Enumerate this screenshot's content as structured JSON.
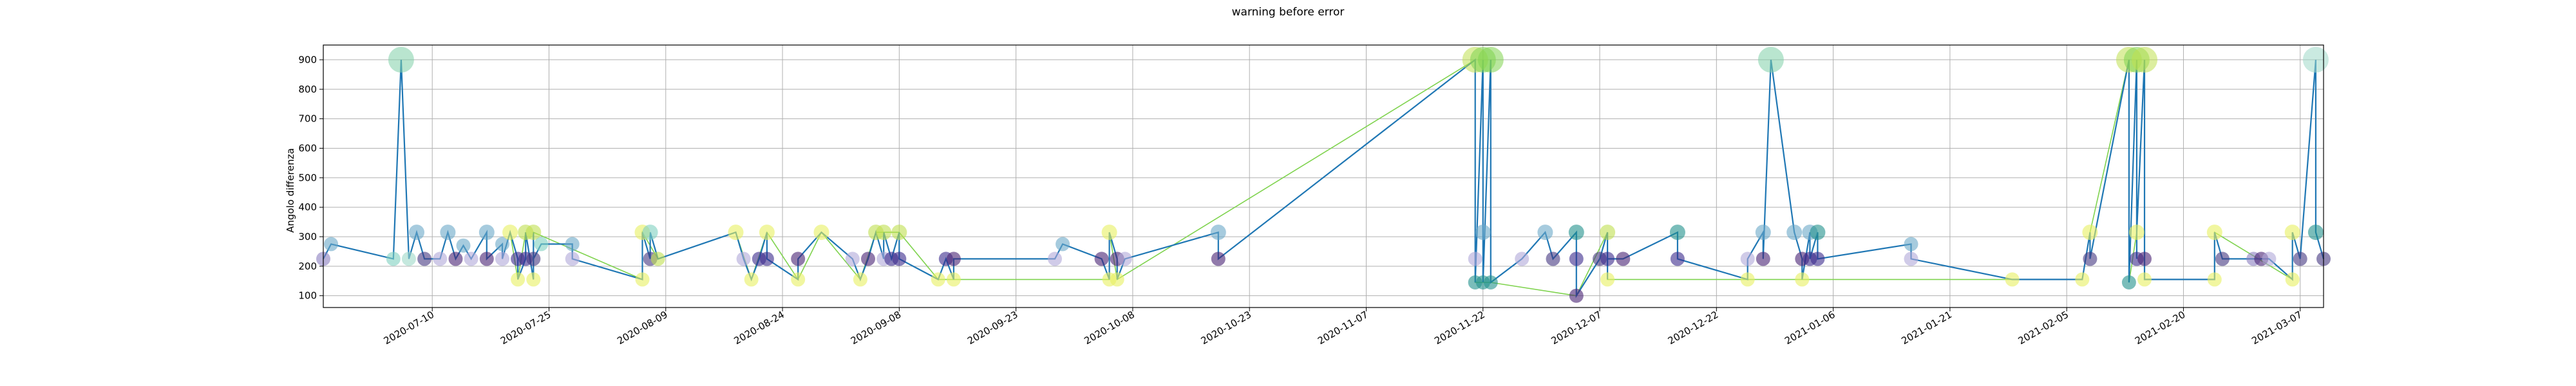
{
  "chart_data": {
    "type": "scatter",
    "title": "warning before error",
    "xlabel": "",
    "ylabel": "Angolo differenza",
    "x_axis": "date",
    "xlim": [
      "2020-06-26",
      "2021-03-10"
    ],
    "ylim": [
      60,
      950
    ],
    "grid": true,
    "x_ticks": [
      "2020-07-10",
      "2020-07-25",
      "2020-08-09",
      "2020-08-24",
      "2020-09-08",
      "2020-09-23",
      "2020-10-08",
      "2020-10-23",
      "2020-11-07",
      "2020-11-22",
      "2020-12-07",
      "2020-12-22",
      "2021-01-06",
      "2021-01-21",
      "2021-02-05",
      "2021-02-20",
      "2021-03-07"
    ],
    "y_ticks": [
      100,
      200,
      300,
      400,
      500,
      600,
      700,
      800,
      900
    ],
    "line_color": "#1f77b4",
    "secondary_line_color": "#7fd34e",
    "series": [
      {
        "marker_style": "translucent circles sized and colored by value",
        "points": [
          {
            "x": "2020-06-26",
            "y": 225,
            "c": "#8a7fc0"
          },
          {
            "x": "2020-06-27",
            "y": 275,
            "c": "#6aa8c8"
          },
          {
            "x": "2020-07-05",
            "y": 225,
            "c": "#7fd0c0"
          },
          {
            "x": "2020-07-06",
            "y": 900,
            "c": "#7fd0a8",
            "s": "large"
          },
          {
            "x": "2020-07-07",
            "y": 225,
            "c": "#9fd8c8"
          },
          {
            "x": "2020-07-08",
            "y": 315,
            "c": "#6aa8c8"
          },
          {
            "x": "2020-07-09",
            "y": 225,
            "c": "#453781"
          },
          {
            "x": "2020-07-11",
            "y": 225,
            "c": "#b0a8d8"
          },
          {
            "x": "2020-07-12",
            "y": 315,
            "c": "#6aa8c8"
          },
          {
            "x": "2020-07-13",
            "y": 225,
            "c": "#482173"
          },
          {
            "x": "2020-07-14",
            "y": 270,
            "c": "#6aa8c8"
          },
          {
            "x": "2020-07-15",
            "y": 225,
            "c": "#b0a8d8"
          },
          {
            "x": "2020-07-17",
            "y": 315,
            "c": "#6aa8c8"
          },
          {
            "x": "2020-07-17",
            "y": 225,
            "c": "#482173"
          },
          {
            "x": "2020-07-19",
            "y": 275,
            "c": "#6aa8c8"
          },
          {
            "x": "2020-07-19",
            "y": 225,
            "c": "#b0a8d8"
          },
          {
            "x": "2020-07-20",
            "y": 315,
            "c": "#e8f060"
          },
          {
            "x": "2020-07-21",
            "y": 225,
            "c": "#3b2a8c"
          },
          {
            "x": "2020-07-21",
            "y": 155,
            "c": "#e8f060"
          },
          {
            "x": "2020-07-22",
            "y": 225,
            "c": "#3b2a8c"
          },
          {
            "x": "2020-07-22",
            "y": 315,
            "c": "#c0e050"
          },
          {
            "x": "2020-07-23",
            "y": 155,
            "c": "#e8f060"
          },
          {
            "x": "2020-07-23",
            "y": 315,
            "c": "#c0e050"
          },
          {
            "x": "2020-07-23",
            "y": 225,
            "c": "#453781"
          },
          {
            "x": "2020-07-24",
            "y": 275,
            "c": "#7fd0c0"
          },
          {
            "x": "2020-07-28",
            "y": 275,
            "c": "#6aa8c8"
          },
          {
            "x": "2020-07-28",
            "y": 225,
            "c": "#b0a8d8"
          },
          {
            "x": "2020-08-06",
            "y": 155,
            "c": "#e8f060"
          },
          {
            "x": "2020-08-06",
            "y": 315,
            "c": "#e8f060"
          },
          {
            "x": "2020-08-07",
            "y": 225,
            "c": "#453781"
          },
          {
            "x": "2020-08-07",
            "y": 315,
            "c": "#7fd0c0"
          },
          {
            "x": "2020-08-08",
            "y": 225,
            "c": "#c0e050"
          },
          {
            "x": "2020-08-18",
            "y": 315,
            "c": "#e8f060"
          },
          {
            "x": "2020-08-19",
            "y": 225,
            "c": "#b0a8d8"
          },
          {
            "x": "2020-08-20",
            "y": 155,
            "c": "#e8f060"
          },
          {
            "x": "2020-08-21",
            "y": 225,
            "c": "#3b2a8c"
          },
          {
            "x": "2020-08-22",
            "y": 315,
            "c": "#e8f060"
          },
          {
            "x": "2020-08-22",
            "y": 225,
            "c": "#3b2a8c"
          },
          {
            "x": "2020-08-26",
            "y": 155,
            "c": "#e8f060"
          },
          {
            "x": "2020-08-26",
            "y": 225,
            "c": "#482173"
          },
          {
            "x": "2020-08-29",
            "y": 315,
            "c": "#e8f060"
          },
          {
            "x": "2020-09-02",
            "y": 225,
            "c": "#b0a8d8"
          },
          {
            "x": "2020-09-03",
            "y": 155,
            "c": "#e8f060"
          },
          {
            "x": "2020-09-04",
            "y": 225,
            "c": "#482173"
          },
          {
            "x": "2020-09-05",
            "y": 315,
            "c": "#c0e050"
          },
          {
            "x": "2020-09-06",
            "y": 225,
            "c": "#b0a8d8"
          },
          {
            "x": "2020-09-06",
            "y": 315,
            "c": "#c0e050"
          },
          {
            "x": "2020-09-07",
            "y": 225,
            "c": "#3b2a8c"
          },
          {
            "x": "2020-09-08",
            "y": 315,
            "c": "#c0e050"
          },
          {
            "x": "2020-09-08",
            "y": 225,
            "c": "#3b2a8c"
          },
          {
            "x": "2020-09-13",
            "y": 155,
            "c": "#e8f060"
          },
          {
            "x": "2020-09-14",
            "y": 225,
            "c": "#3b2a8c"
          },
          {
            "x": "2020-09-15",
            "y": 155,
            "c": "#e8f060"
          },
          {
            "x": "2020-09-15",
            "y": 225,
            "c": "#482173"
          },
          {
            "x": "2020-09-28",
            "y": 225,
            "c": "#b0a8d8"
          },
          {
            "x": "2020-09-29",
            "y": 275,
            "c": "#6aa8c8"
          },
          {
            "x": "2020-10-04",
            "y": 225,
            "c": "#482173"
          },
          {
            "x": "2020-10-05",
            "y": 155,
            "c": "#e8f060"
          },
          {
            "x": "2020-10-05",
            "y": 315,
            "c": "#e8f060"
          },
          {
            "x": "2020-10-06",
            "y": 225,
            "c": "#482173"
          },
          {
            "x": "2020-10-06",
            "y": 155,
            "c": "#e8f060"
          },
          {
            "x": "2020-10-07",
            "y": 225,
            "c": "#b0a8d8"
          },
          {
            "x": "2020-10-19",
            "y": 315,
            "c": "#6aa8c8"
          },
          {
            "x": "2020-10-19",
            "y": 225,
            "c": "#482173"
          },
          {
            "x": "2020-11-21",
            "y": 900,
            "c": "#c0e050",
            "s": "large"
          },
          {
            "x": "2020-11-21",
            "y": 225,
            "c": "#b0a8d8"
          },
          {
            "x": "2020-11-21",
            "y": 145,
            "c": "#21918c"
          },
          {
            "x": "2020-11-22",
            "y": 900,
            "c": "#7fd34e",
            "s": "large"
          },
          {
            "x": "2020-11-22",
            "y": 315,
            "c": "#6aa8c8"
          },
          {
            "x": "2020-11-22",
            "y": 145,
            "c": "#21918c"
          },
          {
            "x": "2020-11-23",
            "y": 900,
            "c": "#7fd34e",
            "s": "large"
          },
          {
            "x": "2020-11-23",
            "y": 145,
            "c": "#21918c"
          },
          {
            "x": "2020-11-27",
            "y": 225,
            "c": "#b0a8d8"
          },
          {
            "x": "2020-11-30",
            "y": 315,
            "c": "#6aa8c8"
          },
          {
            "x": "2020-12-01",
            "y": 225,
            "c": "#453781"
          },
          {
            "x": "2020-12-04",
            "y": 315,
            "c": "#21918c"
          },
          {
            "x": "2020-12-04",
            "y": 225,
            "c": "#3b2a8c"
          },
          {
            "x": "2020-12-04",
            "y": 100,
            "c": "#482173"
          },
          {
            "x": "2020-12-07",
            "y": 225,
            "c": "#453781"
          },
          {
            "x": "2020-12-08",
            "y": 315,
            "c": "#c0e050"
          },
          {
            "x": "2020-12-08",
            "y": 155,
            "c": "#e8f060"
          },
          {
            "x": "2020-12-08",
            "y": 225,
            "c": "#3b2a8c"
          },
          {
            "x": "2020-12-10",
            "y": 225,
            "c": "#482173"
          },
          {
            "x": "2020-12-17",
            "y": 315,
            "c": "#21918c"
          },
          {
            "x": "2020-12-17",
            "y": 225,
            "c": "#3b2a8c"
          },
          {
            "x": "2020-12-26",
            "y": 155,
            "c": "#e8f060"
          },
          {
            "x": "2020-12-26",
            "y": 225,
            "c": "#b0a8d8"
          },
          {
            "x": "2020-12-28",
            "y": 315,
            "c": "#6aa8c8"
          },
          {
            "x": "2020-12-28",
            "y": 225,
            "c": "#482173"
          },
          {
            "x": "2020-12-29",
            "y": 900,
            "c": "#7fd0a8",
            "s": "large"
          },
          {
            "x": "2021-01-01",
            "y": 315,
            "c": "#6aa8c8"
          },
          {
            "x": "2021-01-02",
            "y": 225,
            "c": "#482173"
          },
          {
            "x": "2021-01-02",
            "y": 155,
            "c": "#e8f060"
          },
          {
            "x": "2021-01-03",
            "y": 315,
            "c": "#6aa8c8"
          },
          {
            "x": "2021-01-03",
            "y": 225,
            "c": "#3b2a8c"
          },
          {
            "x": "2021-01-04",
            "y": 315,
            "c": "#21918c"
          },
          {
            "x": "2021-01-04",
            "y": 225,
            "c": "#3b2a8c"
          },
          {
            "x": "2021-01-16",
            "y": 275,
            "c": "#6aa8c8"
          },
          {
            "x": "2021-01-16",
            "y": 225,
            "c": "#b0a8d8"
          },
          {
            "x": "2021-01-29",
            "y": 155,
            "c": "#e8f060"
          },
          {
            "x": "2021-02-07",
            "y": 155,
            "c": "#e8f060"
          },
          {
            "x": "2021-02-08",
            "y": 315,
            "c": "#e8f060"
          },
          {
            "x": "2021-02-08",
            "y": 225,
            "c": "#453781"
          },
          {
            "x": "2021-02-13",
            "y": 900,
            "c": "#c0e050",
            "s": "large"
          },
          {
            "x": "2021-02-13",
            "y": 145,
            "c": "#21918c"
          },
          {
            "x": "2021-02-14",
            "y": 900,
            "c": "#7fd34e",
            "s": "large"
          },
          {
            "x": "2021-02-14",
            "y": 225,
            "c": "#3b2a8c"
          },
          {
            "x": "2021-02-14",
            "y": 315,
            "c": "#e8f060"
          },
          {
            "x": "2021-02-15",
            "y": 900,
            "c": "#c0e050",
            "s": "large"
          },
          {
            "x": "2021-02-15",
            "y": 225,
            "c": "#482173"
          },
          {
            "x": "2021-02-15",
            "y": 155,
            "c": "#e8f060"
          },
          {
            "x": "2021-02-24",
            "y": 155,
            "c": "#e8f060"
          },
          {
            "x": "2021-02-24",
            "y": 315,
            "c": "#e8f060"
          },
          {
            "x": "2021-02-25",
            "y": 225,
            "c": "#453781"
          },
          {
            "x": "2021-03-01",
            "y": 225,
            "c": "#8a7fc0"
          },
          {
            "x": "2021-03-02",
            "y": 225,
            "c": "#482173"
          },
          {
            "x": "2021-03-03",
            "y": 225,
            "c": "#b0a8d8"
          },
          {
            "x": "2021-03-06",
            "y": 155,
            "c": "#e8f060"
          },
          {
            "x": "2021-03-06",
            "y": 315,
            "c": "#e8f060"
          },
          {
            "x": "2021-03-07",
            "y": 225,
            "c": "#453781"
          },
          {
            "x": "2021-03-09",
            "y": 900,
            "c": "#9fd8c8",
            "s": "large"
          },
          {
            "x": "2021-03-09",
            "y": 315,
            "c": "#21918c"
          },
          {
            "x": "2021-03-10",
            "y": 225,
            "c": "#453781"
          }
        ]
      }
    ]
  }
}
